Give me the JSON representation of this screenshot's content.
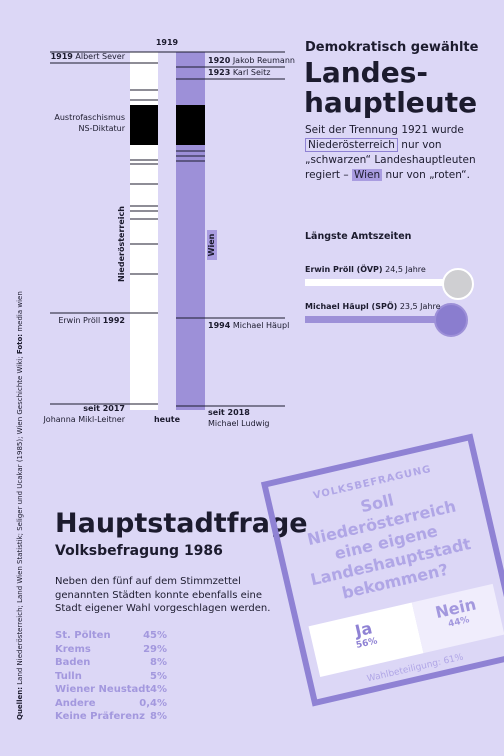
{
  "header": {
    "kicker": "Demokratisch gewählte",
    "title": [
      "Landes-",
      "hauptleute"
    ],
    "intro": [
      "Seit der Trennung 1921 wurde",
      "Niederösterreich",
      "nur von „schwarzen“ Landeshauptleuten regiert –",
      "Wien",
      "nur von „roten“."
    ]
  },
  "timeline": {
    "top": "1919",
    "noe_first": {
      "year": "1919",
      "name": "Albert Sever"
    },
    "wien_first": {
      "year": "1920",
      "name": "Jakob Reumann"
    },
    "wien_second": {
      "year": "1923",
      "name": "Karl Seitz"
    },
    "dictatorship": [
      "Austrofaschismus",
      "NS-Diktatur"
    ],
    "noe_label": "Niederösterreich",
    "wien_label": "Wien",
    "noe_mid": {
      "name": "Erwin Pröll",
      "year": "1992"
    },
    "wien_mid": {
      "year": "1994",
      "name": "Michael Häupl"
    },
    "noe_current": {
      "since": "seit 2017",
      "name": "Johanna Mikl-Leitner"
    },
    "wien_current": {
      "since": "seit 2018",
      "name": "Michael Ludwig"
    },
    "today": "heute"
  },
  "longest": {
    "title": "Längste Amtszeiten",
    "items": [
      {
        "name": "Erwin Pröll (ÖVP)",
        "duration": "24,5 Jahre"
      },
      {
        "name": "Michael Häupl (SPÖ)",
        "duration": "23,5 Jahre"
      }
    ]
  },
  "sources": [
    "Quellen:",
    "Land Niederösterreich; Land Wien Statistik; Seliger und Ucakar (1985); Wien Geschichte Wiki;",
    "Foto:",
    "media wien"
  ],
  "poll": {
    "title": "Hauptstadtfrage",
    "subtitle": "Volksbefragung 1986",
    "text": "Neben den fünf auf dem Stimmzettel genannten Städten konnte ebenfalls eine Stadt eigener Wahl vorgeschlagen werden.",
    "results": [
      [
        "St. Pölten",
        "45%"
      ],
      [
        "Krems",
        "29%"
      ],
      [
        "Baden",
        "8%"
      ],
      [
        "Tulln",
        "5%"
      ],
      [
        "Wiener Neustadt",
        "4%"
      ],
      [
        "Andere",
        "0,4%"
      ],
      [
        "Keine Präferenz",
        "8%"
      ]
    ]
  },
  "card": {
    "kicker": "VOLKSBEFRAGUNG",
    "question": "Soll Niederösterreich eine eigene Landeshauptstadt bekommen?",
    "yes": {
      "label": "Ja",
      "value": "56%"
    },
    "no": {
      "label": "Nein",
      "value": "44%"
    },
    "turnout": "Wahlbeteiligung: 61%"
  }
}
